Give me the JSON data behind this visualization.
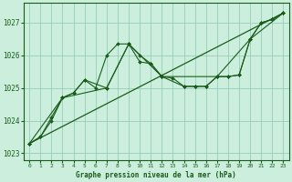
{
  "title": "Graphe pression niveau de la mer (hPa)",
  "bg_color": "#cceedd",
  "plot_bg_color": "#cceedd",
  "grid_color": "#99ccbb",
  "line_color": "#1a5c1a",
  "marker_color": "#1a5c1a",
  "xlim": [
    -0.5,
    23.5
  ],
  "ylim": [
    1022.8,
    1027.6
  ],
  "yticks": [
    1023,
    1024,
    1025,
    1026,
    1027
  ],
  "xticks": [
    0,
    1,
    2,
    3,
    4,
    5,
    6,
    7,
    8,
    9,
    10,
    11,
    12,
    13,
    14,
    15,
    16,
    17,
    18,
    19,
    20,
    21,
    22,
    23
  ],
  "lines": [
    {
      "x": [
        0,
        1,
        2,
        3,
        4,
        5,
        6,
        7,
        8,
        9,
        10,
        11,
        12,
        13,
        14,
        15,
        16,
        17,
        18,
        19,
        20,
        21,
        22,
        23
      ],
      "y": [
        1023.3,
        1023.5,
        1024.0,
        1024.7,
        1024.85,
        1025.25,
        1025.0,
        1026.0,
        1026.35,
        1026.35,
        1025.8,
        1025.75,
        1025.35,
        1025.3,
        1025.05,
        1025.05,
        1025.05,
        1025.35,
        1025.35,
        1025.4,
        1026.5,
        1027.0,
        1027.1,
        1027.3
      ]
    },
    {
      "x": [
        0,
        1,
        2,
        3,
        4,
        5,
        7,
        9,
        10,
        11,
        12,
        14,
        15,
        16,
        17,
        18,
        19,
        20,
        21,
        22,
        23
      ],
      "y": [
        1023.3,
        1023.5,
        1024.1,
        1024.7,
        1024.85,
        1025.25,
        1025.0,
        1026.35,
        1026.0,
        1025.75,
        1025.35,
        1025.05,
        1025.05,
        1025.05,
        1025.35,
        1025.35,
        1025.4,
        1026.5,
        1027.0,
        1027.1,
        1027.3
      ]
    },
    {
      "x": [
        0,
        3,
        7,
        9,
        12,
        17,
        20,
        23
      ],
      "y": [
        1023.3,
        1024.7,
        1025.0,
        1026.35,
        1025.35,
        1025.35,
        1026.5,
        1027.3
      ]
    },
    {
      "x": [
        0,
        23
      ],
      "y": [
        1023.3,
        1027.3
      ]
    }
  ]
}
